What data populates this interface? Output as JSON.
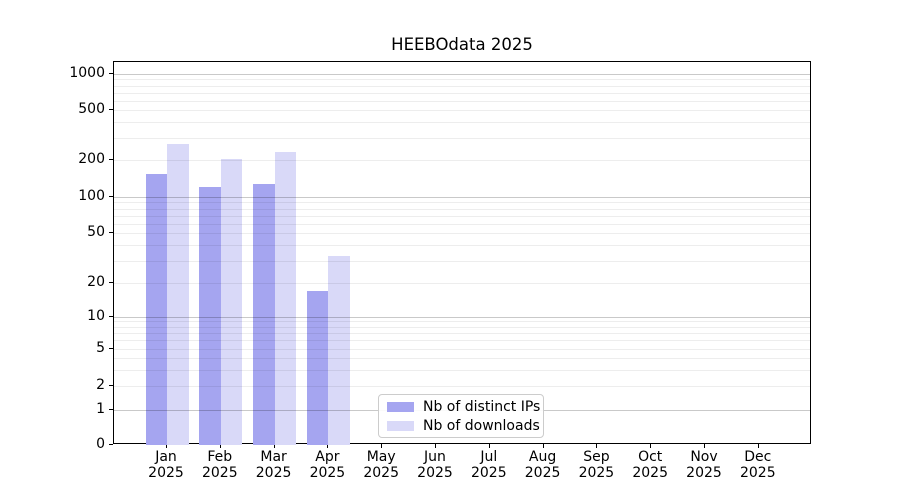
{
  "figure": {
    "background": "#ffffff"
  },
  "chart_data": {
    "type": "bar",
    "title": "HEEBOdata 2025",
    "categories": [
      "Jan 2025",
      "Feb 2025",
      "Mar 2025",
      "Apr 2025",
      "May 2025",
      "Jun 2025",
      "Jul 2025",
      "Aug 2025",
      "Sep 2025",
      "Oct 2025",
      "Nov 2025",
      "Dec 2025"
    ],
    "series": [
      {
        "name": "Nb of distinct IPs",
        "color": "#a5a5f0",
        "values": [
          155,
          120,
          128,
          17,
          0,
          0,
          0,
          0,
          0,
          0,
          0,
          0
        ]
      },
      {
        "name": "Nb of downloads",
        "color": "#d9d9f8",
        "values": [
          270,
          205,
          230,
          33,
          0,
          0,
          0,
          0,
          0,
          0,
          0,
          0
        ]
      }
    ],
    "xlabel": "",
    "ylabel": "",
    "yscale": "symlog",
    "yticks": [
      0,
      1,
      2,
      5,
      10,
      20,
      50,
      100,
      200,
      500,
      1000
    ],
    "ylim": [
      0,
      1400
    ],
    "grid": true,
    "legend_position": "lower center-left",
    "colors": {
      "major_gridline": "#c6c6c6",
      "minor_gridline": "#ededed",
      "spine": "#000000",
      "legend_border": "#cccccc"
    }
  }
}
